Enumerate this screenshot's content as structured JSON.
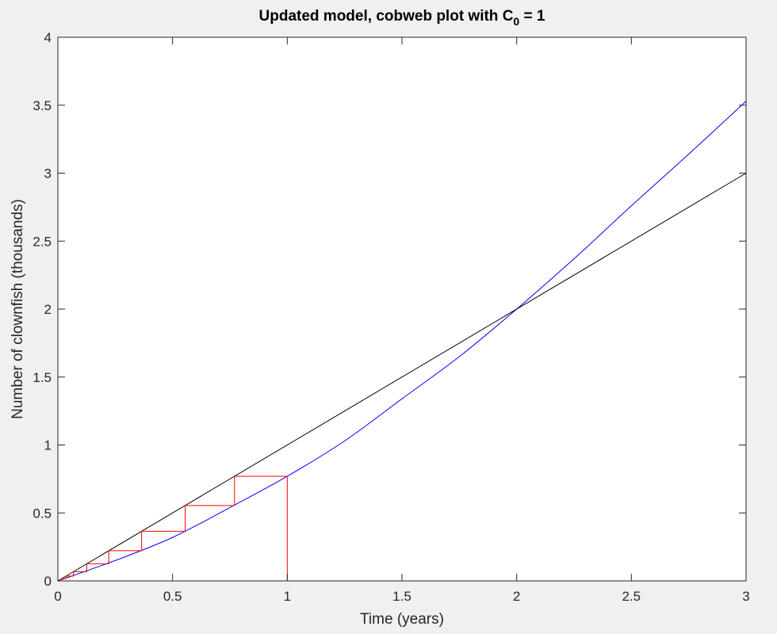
{
  "chart_data": {
    "type": "line",
    "title": "Updated model, cobweb plot with C",
    "title_subscript": "0",
    "title_suffix": " = 1",
    "xlabel": "Time (years)",
    "ylabel": "Number of clownfish (thousands)",
    "xlim": [
      0,
      3
    ],
    "ylim": [
      0,
      4
    ],
    "xticks": [
      0,
      0.5,
      1,
      1.5,
      2,
      2.5,
      3
    ],
    "xtick_labels": [
      "0",
      "0.5",
      "1",
      "1.5",
      "2",
      "2.5",
      "3"
    ],
    "yticks": [
      0,
      0.5,
      1,
      1.5,
      2,
      2.5,
      3,
      3.5,
      4
    ],
    "ytick_labels": [
      "0",
      "0.5",
      "1",
      "1.5",
      "2",
      "2.5",
      "3",
      "3.5",
      "4"
    ],
    "grid": false,
    "legend": "none",
    "series": [
      {
        "color": "#0000ff",
        "x": [
          0,
          0.25,
          0.5,
          0.75,
          1,
          1.25,
          1.5,
          1.75,
          2,
          2.25,
          2.5,
          2.75,
          3
        ],
        "y": [
          0,
          0.15,
          0.32,
          0.54,
          0.77,
          1.03,
          1.34,
          1.65,
          2.0,
          2.37,
          2.76,
          3.14,
          3.53
        ]
      },
      {
        "color": "#000000",
        "x": [
          0,
          3
        ],
        "y": [
          0,
          3
        ]
      },
      {
        "color": "#ff0000",
        "x": [
          1,
          1,
          0.77,
          0.77,
          0.555,
          0.555,
          0.365,
          0.365,
          0.222,
          0.222,
          0.126,
          0.126,
          0.068,
          0.068,
          0.036,
          0.036,
          0.018,
          0.018,
          0.009,
          0.009,
          0
        ],
        "y": [
          0,
          0.77,
          0.77,
          0.555,
          0.555,
          0.365,
          0.365,
          0.222,
          0.222,
          0.126,
          0.126,
          0.068,
          0.068,
          0.036,
          0.036,
          0.018,
          0.018,
          0.009,
          0.009,
          0,
          0
        ]
      }
    ]
  }
}
